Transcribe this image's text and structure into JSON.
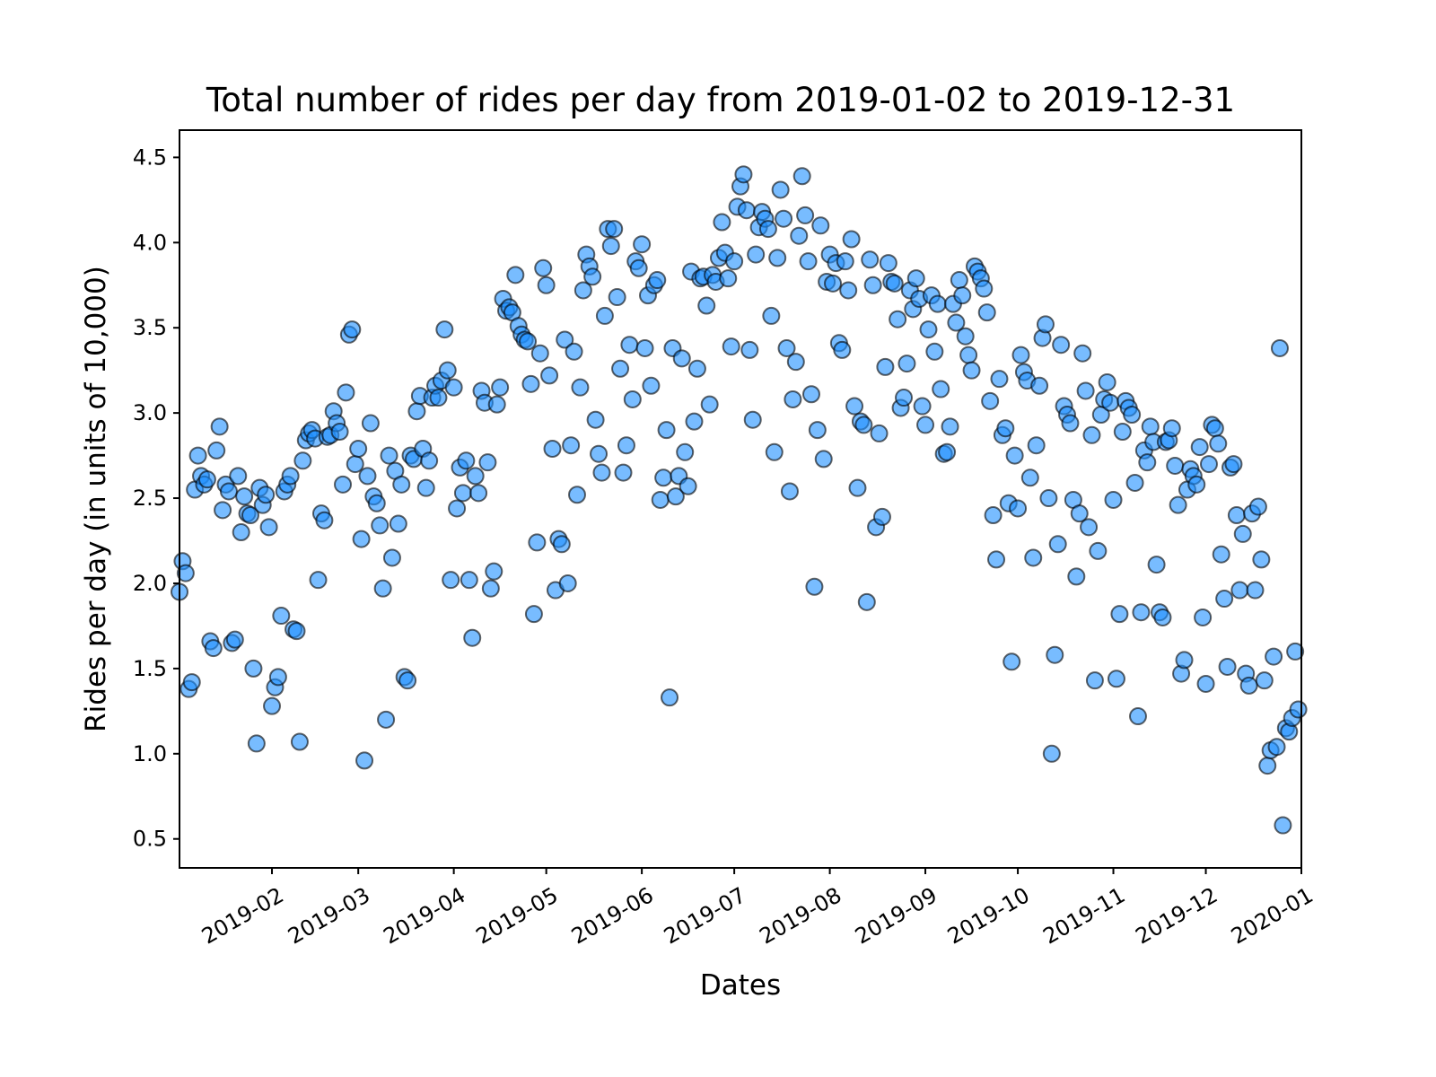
{
  "chart_data": {
    "type": "scatter",
    "title": "Total number of rides per day from 2019-01-02 to 2019-12-31",
    "xlabel": "Dates",
    "ylabel": "Rides per day (in units of 10,000)",
    "x_type": "date",
    "xlim": [
      "2019-01-02",
      "2020-01-01"
    ],
    "ylim": [
      0.33,
      4.66
    ],
    "x_ticks": [
      "2019-02-01",
      "2019-03-01",
      "2019-04-01",
      "2019-05-01",
      "2019-06-01",
      "2019-07-01",
      "2019-08-01",
      "2019-09-01",
      "2019-10-01",
      "2019-11-01",
      "2019-12-01",
      "2020-01-01"
    ],
    "x_tick_labels": [
      "2019-02",
      "2019-03",
      "2019-04",
      "2019-05",
      "2019-06",
      "2019-07",
      "2019-08",
      "2019-09",
      "2019-10",
      "2019-11",
      "2019-12",
      "2020-01"
    ],
    "y_ticks": [
      0.5,
      1.0,
      1.5,
      2.0,
      2.5,
      3.0,
      3.5,
      4.0,
      4.5
    ],
    "y_tick_labels": [
      "0.5",
      "1.0",
      "1.5",
      "2.0",
      "2.5",
      "3.0",
      "3.5",
      "4.0",
      "4.5"
    ],
    "grid": false,
    "legend": "none",
    "marker": {
      "fill": "#1e90ff",
      "fill_opacity": 0.6,
      "edge": "#000000",
      "edge_opacity": 0.6
    },
    "series": [
      {
        "x": [
          "2019-01-02",
          "2019-01-03",
          "2019-01-04",
          "2019-01-05",
          "2019-01-06",
          "2019-01-07",
          "2019-01-08",
          "2019-01-09",
          "2019-01-10",
          "2019-01-11",
          "2019-01-12",
          "2019-01-13",
          "2019-01-14",
          "2019-01-15",
          "2019-01-16",
          "2019-01-17",
          "2019-01-18",
          "2019-01-19",
          "2019-01-20",
          "2019-01-21",
          "2019-01-22",
          "2019-01-23",
          "2019-01-24",
          "2019-01-25",
          "2019-01-26",
          "2019-01-27",
          "2019-01-28",
          "2019-01-29",
          "2019-01-30",
          "2019-01-31",
          "2019-02-01",
          "2019-02-02",
          "2019-02-03",
          "2019-02-04",
          "2019-02-05",
          "2019-02-06",
          "2019-02-07",
          "2019-02-08",
          "2019-02-09",
          "2019-02-10",
          "2019-02-11",
          "2019-02-12",
          "2019-02-13",
          "2019-02-14",
          "2019-02-15",
          "2019-02-16",
          "2019-02-17",
          "2019-02-18",
          "2019-02-19",
          "2019-02-20",
          "2019-02-21",
          "2019-02-22",
          "2019-02-23",
          "2019-02-24",
          "2019-02-25",
          "2019-02-26",
          "2019-02-27",
          "2019-02-28",
          "2019-03-01",
          "2019-03-02",
          "2019-03-03",
          "2019-03-04",
          "2019-03-05",
          "2019-03-06",
          "2019-03-07",
          "2019-03-08",
          "2019-03-09",
          "2019-03-10",
          "2019-03-11",
          "2019-03-12",
          "2019-03-13",
          "2019-03-14",
          "2019-03-15",
          "2019-03-16",
          "2019-03-17",
          "2019-03-18",
          "2019-03-19",
          "2019-03-20",
          "2019-03-21",
          "2019-03-22",
          "2019-03-23",
          "2019-03-24",
          "2019-03-25",
          "2019-03-26",
          "2019-03-27",
          "2019-03-28",
          "2019-03-29",
          "2019-03-30",
          "2019-03-31",
          "2019-04-01",
          "2019-04-02",
          "2019-04-03",
          "2019-04-04",
          "2019-04-05",
          "2019-04-06",
          "2019-04-07",
          "2019-04-08",
          "2019-04-09",
          "2019-04-10",
          "2019-04-11",
          "2019-04-12",
          "2019-04-13",
          "2019-04-14",
          "2019-04-15",
          "2019-04-16",
          "2019-04-17",
          "2019-04-18",
          "2019-04-19",
          "2019-04-20",
          "2019-04-21",
          "2019-04-22",
          "2019-04-23",
          "2019-04-24",
          "2019-04-25",
          "2019-04-26",
          "2019-04-27",
          "2019-04-28",
          "2019-04-29",
          "2019-04-30",
          "2019-05-01",
          "2019-05-02",
          "2019-05-03",
          "2019-05-04",
          "2019-05-05",
          "2019-05-06",
          "2019-05-07",
          "2019-05-08",
          "2019-05-09",
          "2019-05-10",
          "2019-05-11",
          "2019-05-12",
          "2019-05-13",
          "2019-05-14",
          "2019-05-15",
          "2019-05-16",
          "2019-05-17",
          "2019-05-18",
          "2019-05-19",
          "2019-05-20",
          "2019-05-21",
          "2019-05-22",
          "2019-05-23",
          "2019-05-24",
          "2019-05-25",
          "2019-05-26",
          "2019-05-27",
          "2019-05-28",
          "2019-05-29",
          "2019-05-30",
          "2019-05-31",
          "2019-06-01",
          "2019-06-02",
          "2019-06-03",
          "2019-06-04",
          "2019-06-05",
          "2019-06-06",
          "2019-06-07",
          "2019-06-08",
          "2019-06-09",
          "2019-06-10",
          "2019-06-11",
          "2019-06-12",
          "2019-06-13",
          "2019-06-14",
          "2019-06-15",
          "2019-06-16",
          "2019-06-17",
          "2019-06-18",
          "2019-06-19",
          "2019-06-20",
          "2019-06-21",
          "2019-06-22",
          "2019-06-23",
          "2019-06-24",
          "2019-06-25",
          "2019-06-26",
          "2019-06-27",
          "2019-06-28",
          "2019-06-29",
          "2019-06-30",
          "2019-07-01",
          "2019-07-02",
          "2019-07-03",
          "2019-07-04",
          "2019-07-05",
          "2019-07-06",
          "2019-07-07",
          "2019-07-08",
          "2019-07-09",
          "2019-07-10",
          "2019-07-11",
          "2019-07-12",
          "2019-07-13",
          "2019-07-14",
          "2019-07-15",
          "2019-07-16",
          "2019-07-17",
          "2019-07-18",
          "2019-07-19",
          "2019-07-20",
          "2019-07-21",
          "2019-07-22",
          "2019-07-23",
          "2019-07-24",
          "2019-07-25",
          "2019-07-26",
          "2019-07-27",
          "2019-07-28",
          "2019-07-29",
          "2019-07-30",
          "2019-07-31",
          "2019-08-01",
          "2019-08-02",
          "2019-08-03",
          "2019-08-04",
          "2019-08-05",
          "2019-08-06",
          "2019-08-07",
          "2019-08-08",
          "2019-08-09",
          "2019-08-10",
          "2019-08-11",
          "2019-08-12",
          "2019-08-13",
          "2019-08-14",
          "2019-08-15",
          "2019-08-16",
          "2019-08-17",
          "2019-08-18",
          "2019-08-19",
          "2019-08-20",
          "2019-08-21",
          "2019-08-22",
          "2019-08-23",
          "2019-08-24",
          "2019-08-25",
          "2019-08-26",
          "2019-08-27",
          "2019-08-28",
          "2019-08-29",
          "2019-08-30",
          "2019-08-31",
          "2019-09-01",
          "2019-09-02",
          "2019-09-03",
          "2019-09-04",
          "2019-09-05",
          "2019-09-06",
          "2019-09-07",
          "2019-09-08",
          "2019-09-09",
          "2019-09-10",
          "2019-09-11",
          "2019-09-12",
          "2019-09-13",
          "2019-09-14",
          "2019-09-15",
          "2019-09-16",
          "2019-09-17",
          "2019-09-18",
          "2019-09-19",
          "2019-09-20",
          "2019-09-21",
          "2019-09-22",
          "2019-09-23",
          "2019-09-24",
          "2019-09-25",
          "2019-09-26",
          "2019-09-27",
          "2019-09-28",
          "2019-09-29",
          "2019-09-30",
          "2019-10-01",
          "2019-10-02",
          "2019-10-03",
          "2019-10-04",
          "2019-10-05",
          "2019-10-06",
          "2019-10-07",
          "2019-10-08",
          "2019-10-09",
          "2019-10-10",
          "2019-10-11",
          "2019-10-12",
          "2019-10-13",
          "2019-10-14",
          "2019-10-15",
          "2019-10-16",
          "2019-10-17",
          "2019-10-18",
          "2019-10-19",
          "2019-10-20",
          "2019-10-21",
          "2019-10-22",
          "2019-10-23",
          "2019-10-24",
          "2019-10-25",
          "2019-10-26",
          "2019-10-27",
          "2019-10-28",
          "2019-10-29",
          "2019-10-30",
          "2019-10-31",
          "2019-11-01",
          "2019-11-02",
          "2019-11-03",
          "2019-11-04",
          "2019-11-05",
          "2019-11-06",
          "2019-11-07",
          "2019-11-08",
          "2019-11-09",
          "2019-11-10",
          "2019-11-11",
          "2019-11-12",
          "2019-11-13",
          "2019-11-14",
          "2019-11-15",
          "2019-11-16",
          "2019-11-17",
          "2019-11-18",
          "2019-11-19",
          "2019-11-20",
          "2019-11-21",
          "2019-11-22",
          "2019-11-23",
          "2019-11-24",
          "2019-11-25",
          "2019-11-26",
          "2019-11-27",
          "2019-11-28",
          "2019-11-29",
          "2019-11-30",
          "2019-12-01",
          "2019-12-02",
          "2019-12-03",
          "2019-12-04",
          "2019-12-05",
          "2019-12-06",
          "2019-12-07",
          "2019-12-08",
          "2019-12-09",
          "2019-12-10",
          "2019-12-11",
          "2019-12-12",
          "2019-12-13",
          "2019-12-14",
          "2019-12-15",
          "2019-12-16",
          "2019-12-17",
          "2019-12-18",
          "2019-12-19",
          "2019-12-20",
          "2019-12-21",
          "2019-12-22",
          "2019-12-23",
          "2019-12-24",
          "2019-12-25",
          "2019-12-26",
          "2019-12-27",
          "2019-12-28",
          "2019-12-29",
          "2019-12-30",
          "2019-12-31"
        ],
        "y": [
          1.95,
          2.13,
          2.06,
          1.38,
          1.42,
          2.55,
          2.75,
          2.63,
          2.58,
          2.61,
          1.66,
          1.62,
          2.78,
          2.92,
          2.43,
          2.58,
          2.54,
          1.65,
          1.67,
          2.63,
          2.3,
          2.51,
          2.41,
          2.4,
          1.5,
          1.06,
          2.56,
          2.46,
          2.52,
          2.33,
          1.28,
          1.39,
          1.45,
          1.81,
          2.54,
          2.58,
          2.63,
          1.73,
          1.72,
          1.07,
          2.72,
          2.84,
          2.88,
          2.9,
          2.85,
          2.02,
          2.41,
          2.37,
          2.86,
          2.87,
          3.01,
          2.94,
          2.89,
          2.58,
          3.12,
          3.46,
          3.49,
          2.7,
          2.79,
          2.26,
          0.96,
          2.63,
          2.94,
          2.51,
          2.47,
          2.34,
          1.97,
          1.2,
          2.75,
          2.15,
          2.66,
          2.35,
          2.58,
          1.45,
          1.43,
          2.75,
          2.73,
          3.01,
          3.1,
          2.79,
          2.56,
          2.72,
          3.09,
          3.16,
          3.09,
          3.19,
          3.49,
          3.25,
          2.02,
          3.15,
          2.44,
          2.68,
          2.53,
          2.72,
          2.02,
          1.68,
          2.63,
          2.53,
          3.13,
          3.06,
          2.71,
          1.97,
          2.07,
          3.05,
          3.15,
          3.67,
          3.6,
          3.62,
          3.59,
          3.81,
          3.51,
          3.46,
          3.43,
          3.42,
          3.17,
          1.82,
          2.24,
          3.35,
          3.85,
          3.75,
          3.22,
          2.79,
          1.96,
          2.26,
          2.23,
          3.43,
          2.0,
          2.81,
          3.36,
          2.52,
          3.15,
          3.72,
          3.93,
          3.86,
          3.8,
          2.96,
          2.76,
          2.65,
          3.57,
          4.08,
          3.98,
          4.08,
          3.68,
          3.26,
          2.65,
          2.81,
          3.4,
          3.08,
          3.89,
          3.85,
          3.99,
          3.38,
          3.69,
          3.16,
          3.75,
          3.78,
          2.49,
          2.62,
          2.9,
          1.33,
          3.38,
          2.51,
          2.63,
          3.32,
          2.77,
          2.57,
          3.83,
          2.95,
          3.26,
          3.79,
          3.8,
          3.63,
          3.05,
          3.81,
          3.77,
          3.91,
          4.12,
          3.94,
          3.79,
          3.39,
          3.89,
          4.21,
          4.33,
          4.4,
          4.19,
          3.37,
          2.96,
          3.93,
          4.09,
          4.18,
          4.14,
          4.08,
          3.57,
          2.77,
          3.91,
          4.31,
          4.14,
          3.38,
          2.54,
          3.08,
          3.3,
          4.04,
          4.39,
          4.16,
          3.89,
          3.11,
          1.98,
          2.9,
          4.1,
          2.73,
          3.77,
          3.93,
          3.76,
          3.88,
          3.41,
          3.37,
          3.89,
          3.72,
          4.02,
          3.04,
          2.56,
          2.95,
          2.93,
          1.89,
          3.9,
          3.75,
          2.33,
          2.88,
          2.39,
          3.27,
          3.88,
          3.77,
          3.76,
          3.55,
          3.03,
          3.09,
          3.29,
          3.72,
          3.61,
          3.79,
          3.67,
          3.04,
          2.93,
          3.49,
          3.69,
          3.36,
          3.64,
          3.14,
          2.76,
          2.77,
          2.92,
          3.64,
          3.53,
          3.78,
          3.69,
          3.45,
          3.34,
          3.25,
          3.86,
          3.83,
          3.79,
          3.73,
          3.59,
          3.07,
          2.4,
          2.14,
          3.2,
          2.87,
          2.91,
          2.47,
          1.54,
          2.75,
          2.44,
          3.34,
          3.24,
          3.19,
          2.62,
          2.15,
          2.81,
          3.16,
          3.44,
          3.52,
          2.5,
          1.0,
          1.58,
          2.23,
          3.4,
          3.04,
          2.99,
          2.94,
          2.49,
          2.04,
          2.41,
          3.35,
          3.13,
          2.33,
          2.87,
          1.43,
          2.19,
          2.99,
          3.08,
          3.18,
          3.06,
          2.49,
          1.44,
          1.82,
          2.89,
          3.07,
          3.03,
          2.99,
          2.59,
          1.22,
          1.83,
          2.78,
          2.71,
          2.92,
          2.83,
          2.11,
          1.83,
          1.8,
          2.83,
          2.84,
          2.91,
          2.69,
          2.46,
          1.47,
          1.55,
          2.55,
          2.67,
          2.63,
          2.58,
          2.8,
          1.8,
          1.41,
          2.7,
          2.93,
          2.91,
          2.82,
          2.17,
          1.91,
          1.51,
          2.68,
          2.7,
          2.4,
          1.96,
          2.29,
          1.47,
          1.4,
          2.41,
          1.96,
          2.45,
          2.14,
          1.43,
          0.93,
          1.02,
          1.57,
          1.04,
          3.38,
          0.58,
          1.15,
          1.13,
          1.21,
          1.6,
          1.26
        ]
      }
    ]
  }
}
